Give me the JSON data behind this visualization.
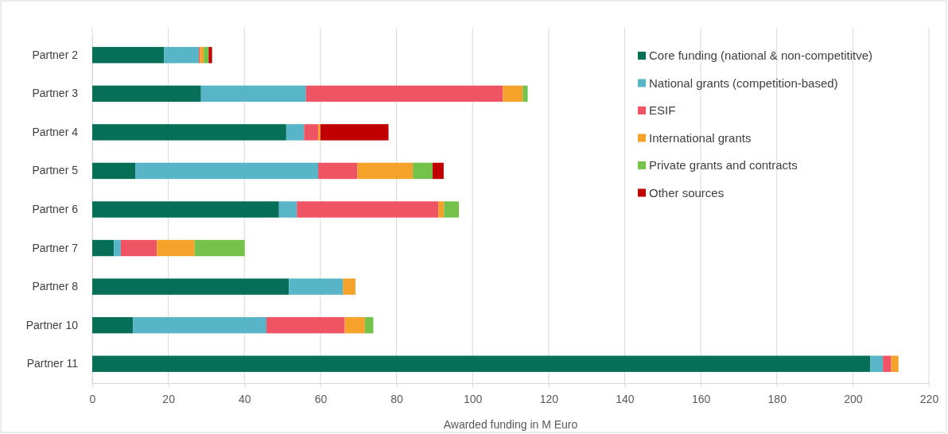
{
  "chart_data": {
    "type": "bar",
    "orientation": "horizontal",
    "stacked": true,
    "xlabel": "Awarded funding in M Euro",
    "categories": [
      "Partner 2",
      "Partner 3",
      "Partner 4",
      "Partner 5",
      "Partner 6",
      "Partner 7",
      "Partner 8",
      "Partner 10",
      "Partner 11"
    ],
    "series": [
      {
        "name": "Core funding (national & non-competititve)",
        "color": "#076f58",
        "values": [
          18.9,
          28.6,
          51.0,
          11.4,
          49.1,
          5.7,
          51.7,
          10.7,
          204.6
        ]
      },
      {
        "name": "National grants (competition-based)",
        "color": "#57b5c7",
        "values": [
          9.1,
          27.6,
          4.7,
          48.0,
          4.7,
          1.8,
          14.2,
          35.1,
          3.3
        ]
      },
      {
        "name": "ESIF",
        "color": "#ef5464",
        "values": [
          0.3,
          51.8,
          3.7,
          10.3,
          37.2,
          9.5,
          0,
          20.6,
          2.2
        ]
      },
      {
        "name": "International grants",
        "color": "#f4a22a",
        "values": [
          1.0,
          5.2,
          0.6,
          14.6,
          1.5,
          9.9,
          3.3,
          5.3,
          1.9
        ]
      },
      {
        "name": "Private grants and contracts",
        "color": "#74c24a",
        "values": [
          1.3,
          1.3,
          0,
          5.2,
          3.9,
          13.2,
          0,
          2.2,
          0
        ]
      },
      {
        "name": "Other sources",
        "color": "#c00000",
        "values": [
          0.9,
          0,
          17.9,
          2.9,
          0,
          0,
          0,
          0,
          0
        ]
      }
    ],
    "xlim": [
      0,
      220
    ],
    "xticks": [
      0,
      20,
      40,
      60,
      80,
      100,
      120,
      140,
      160,
      180,
      200,
      220
    ],
    "grid": "x",
    "legend": "top right"
  }
}
